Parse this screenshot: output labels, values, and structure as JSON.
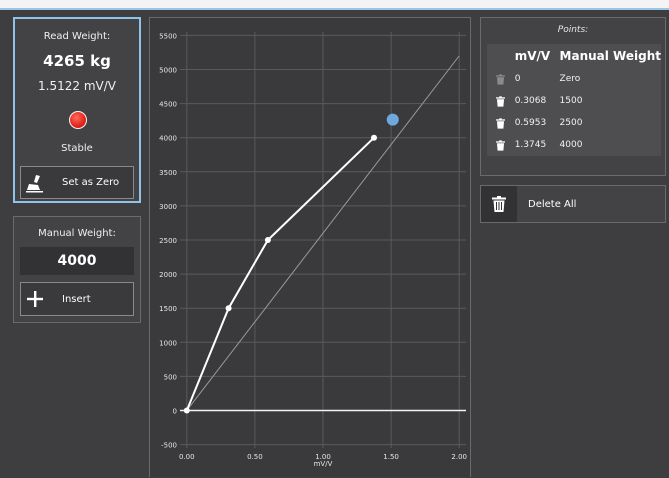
{
  "read_panel": {
    "title": "Read Weight:",
    "weight": "4265 kg",
    "mvv": "1.5122 mV/V",
    "status": "Stable",
    "status_color": "#e3231b",
    "zero_button": {
      "label": "Set as Zero",
      "icon": "broom-icon"
    }
  },
  "manual_panel": {
    "title": "Manual Weight:",
    "value": "4000",
    "insert_button": {
      "label": "Insert",
      "icon": "plus-icon"
    }
  },
  "points_panel": {
    "title": "Points:",
    "headers": [
      "mV/V",
      "Manual Weight"
    ],
    "rows": [
      {
        "mvv": "0",
        "weight": "Zero",
        "delete_enabled": false
      },
      {
        "mvv": "0.3068",
        "weight": "1500",
        "delete_enabled": true
      },
      {
        "mvv": "0.5953",
        "weight": "2500",
        "delete_enabled": true
      },
      {
        "mvv": "1.3745",
        "weight": "4000",
        "delete_enabled": true
      }
    ],
    "delete_all": {
      "label": "Delete All",
      "icon": "trash-icon"
    }
  },
  "chart_data": {
    "type": "line",
    "xlabel": "mV/V",
    "ylabel": "",
    "xlim": [
      -0.05,
      2.05
    ],
    "ylim": [
      -550,
      5550
    ],
    "x_ticks": [
      0,
      0.5,
      1,
      1.5,
      2
    ],
    "x_tick_labels": [
      "0.00",
      "0.50",
      "1.00",
      "1.50",
      "2.00"
    ],
    "y_ticks": [
      -500,
      0,
      500,
      1000,
      1500,
      2000,
      2500,
      3000,
      3500,
      4000,
      4500,
      5000,
      5500
    ],
    "y_tick_labels": [
      "-500",
      "0",
      "500",
      "1000",
      "1500",
      "2000",
      "2500",
      "3000",
      "3500",
      "4000",
      "4500",
      "5000",
      "5500"
    ],
    "grid": true,
    "series": [
      {
        "values_x": [
          0,
          0.3068,
          0.5953,
          1.3745
        ],
        "values_y": [
          0,
          1500,
          2500,
          4000
        ],
        "color": "#ffffff"
      },
      {
        "values_x": [
          0,
          2.0
        ],
        "values_y": [
          0,
          5200
        ],
        "color": "#9a9a9c"
      }
    ],
    "current_point": {
      "x": 1.5122,
      "y": 4265,
      "color": "#6fa8dc"
    }
  }
}
